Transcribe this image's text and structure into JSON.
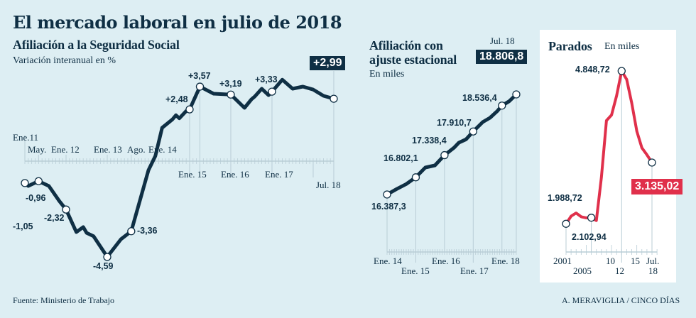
{
  "title": "El mercado laboral en julio de 2018",
  "colors": {
    "background": "#ddeef3",
    "navy": "#0f2f44",
    "red": "#e0304b",
    "grid": "#b9cdd6"
  },
  "chart_data": [
    {
      "type": "line",
      "title": "Afiliación a la Seguridad Social",
      "subtitle": "Variación interanual en %",
      "x_unit": "months since Ene. 2011",
      "points": [
        [
          0,
          -1.05
        ],
        [
          1,
          -1.19
        ],
        [
          4,
          -0.96
        ],
        [
          7,
          -1.19
        ],
        [
          10,
          -1.9
        ],
        [
          12,
          -2.32
        ],
        [
          15,
          -3.4
        ],
        [
          17,
          -3.16
        ],
        [
          18,
          -3.44
        ],
        [
          20,
          -3.6
        ],
        [
          24,
          -4.59
        ],
        [
          28,
          -3.74
        ],
        [
          31,
          -3.36
        ],
        [
          36,
          -0.44
        ],
        [
          38,
          0.24
        ],
        [
          40,
          1.6
        ],
        [
          43,
          2.0
        ],
        [
          44,
          2.2
        ],
        [
          45,
          2.05
        ],
        [
          47,
          2.4
        ],
        [
          48,
          2.48
        ],
        [
          51,
          3.57
        ],
        [
          55,
          3.23
        ],
        [
          60,
          3.19
        ],
        [
          64,
          2.55
        ],
        [
          66,
          2.96
        ],
        [
          67,
          3.1
        ],
        [
          69,
          3.47
        ],
        [
          71,
          3.16
        ],
        [
          72,
          3.33
        ],
        [
          75,
          3.9
        ],
        [
          78,
          3.47
        ],
        [
          81,
          3.57
        ],
        [
          84,
          3.43
        ],
        [
          87,
          3.13
        ],
        [
          90,
          2.99
        ]
      ],
      "highlighted": [
        [
          0,
          -1.05
        ],
        [
          4,
          -0.96
        ],
        [
          12,
          -2.32
        ],
        [
          24,
          -4.59
        ],
        [
          31,
          -3.36
        ],
        [
          48,
          2.48
        ],
        [
          51,
          3.57
        ],
        [
          60,
          3.19
        ],
        [
          72,
          3.33
        ],
        [
          90,
          2.99
        ]
      ],
      "data_labels": [
        "-1,05",
        "-0,96",
        "-2,32",
        "-4,59",
        "-3,36",
        "+2,48",
        "+3,57",
        "+3,19",
        "+3,33",
        "+2,99"
      ],
      "tick_labels": [
        "Ene.11",
        "May.",
        "Ene. 12",
        "Ene. 13",
        "Ago.",
        "Ene. 14",
        "Ene. 15",
        "Ene. 16",
        "Ene. 17",
        "Jul. 18"
      ]
    },
    {
      "type": "line",
      "title": "Afiliación con ajuste estacional",
      "subtitle": "En miles",
      "x_unit": "months since Ene. 2014",
      "points": [
        [
          0,
          16387.3
        ],
        [
          4,
          16520
        ],
        [
          8,
          16640
        ],
        [
          12,
          16802.1
        ],
        [
          16,
          17039
        ],
        [
          20,
          17090
        ],
        [
          24,
          17338.4
        ],
        [
          28,
          17520
        ],
        [
          30,
          17640
        ],
        [
          33,
          17720
        ],
        [
          36,
          17910.7
        ],
        [
          40,
          18140
        ],
        [
          43,
          18240
        ],
        [
          46,
          18400
        ],
        [
          48,
          18536.4
        ],
        [
          51,
          18640
        ],
        [
          54,
          18806.8
        ]
      ],
      "highlighted": [
        [
          0,
          16387.3
        ],
        [
          12,
          16802.1
        ],
        [
          24,
          17338.4
        ],
        [
          36,
          17910.7
        ],
        [
          48,
          18536.4
        ],
        [
          54,
          18806.8
        ]
      ],
      "data_labels": [
        "16.387,3",
        "16.802,1",
        "17.338,4",
        "17.910,7",
        "18.536,4",
        "18.806,8"
      ],
      "top_label": "Jul. 18",
      "tick_labels": [
        "Ene. 14",
        "Ene. 15",
        "Ene. 16",
        "Ene. 17",
        "Ene. 18"
      ]
    },
    {
      "type": "line",
      "title": "Parados",
      "subtitle": "En miles",
      "points": [
        [
          2001,
          1988.72
        ],
        [
          2002,
          2130
        ],
        [
          2003,
          2190
        ],
        [
          2004,
          2120
        ],
        [
          2005,
          2100
        ],
        [
          2006,
          2102.94
        ],
        [
          2007,
          2050
        ],
        [
          2008,
          2857
        ],
        [
          2009,
          3920
        ],
        [
          2010,
          4025
        ],
        [
          2011,
          4385
        ],
        [
          2012,
          4848.72
        ],
        [
          2013,
          4690
        ],
        [
          2014,
          4250
        ],
        [
          2015,
          3720
        ],
        [
          2016,
          3410
        ],
        [
          2017,
          3280
        ],
        [
          2018,
          3135.02
        ]
      ],
      "highlighted": [
        [
          2001,
          1988.72
        ],
        [
          2006,
          2102.94
        ],
        [
          2012,
          4848.72
        ],
        [
          2018,
          3135.02
        ]
      ],
      "data_labels": [
        "1.988,72",
        "2.102,94",
        "4.848,72",
        "3.135,02"
      ],
      "tick_labels": [
        "2001",
        "2005",
        "10",
        "12",
        "15",
        "Jul.",
        "18"
      ]
    }
  ],
  "footer": {
    "source": "Fuente: Ministerio de Trabajo",
    "credit": "A. MERAVIGLIA /  CINCO DÍAS"
  }
}
